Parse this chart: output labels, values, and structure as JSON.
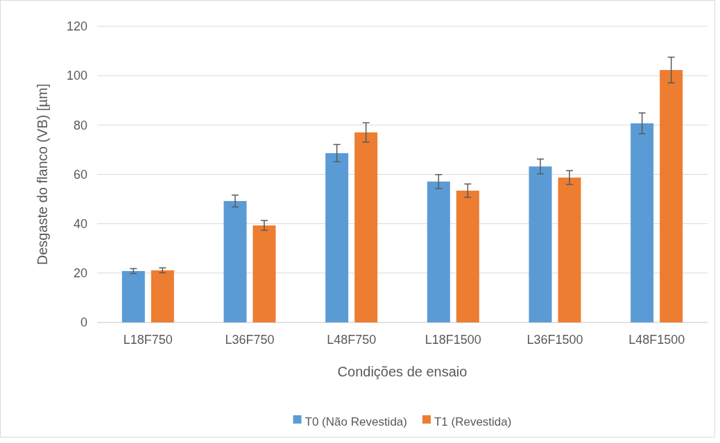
{
  "chart_data": {
    "type": "bar",
    "xlabel": "Condições de ensaio",
    "ylabel": "Desgaste do flanco (VB) [µm]",
    "categories": [
      "L18F750",
      "L36F750",
      "L48F750",
      "L18F1500",
      "L36F1500",
      "L48F1500"
    ],
    "series": [
      {
        "name": "T0 (Não Revestida)",
        "color": "#5b9bd5",
        "values": [
          20.8,
          49.2,
          68.6,
          57.1,
          63.2,
          80.7
        ],
        "errors": [
          1,
          2.4,
          3.5,
          2.8,
          3,
          4.2
        ]
      },
      {
        "name": "T1 (Revestida)",
        "color": "#ed7d31",
        "values": [
          21.1,
          39.3,
          77,
          53.4,
          58.7,
          102.3
        ],
        "errors": [
          1,
          2,
          3.9,
          2.7,
          2.8,
          5.2
        ]
      }
    ],
    "ylim": [
      0,
      120
    ],
    "yticks": [
      0,
      20,
      40,
      60,
      80,
      100,
      120
    ],
    "grid": "y",
    "legend": "bottom"
  }
}
